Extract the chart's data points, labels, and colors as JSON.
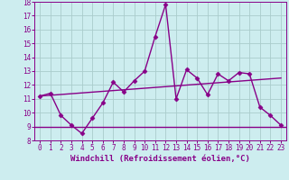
{
  "xlabel": "Windchill (Refroidissement éolien,°C)",
  "ylabel": "",
  "background_color": "#cdedef",
  "line_color": "#880088",
  "grid_color": "#aacccc",
  "xlim": [
    -0.5,
    23.5
  ],
  "ylim": [
    8,
    18
  ],
  "xticks": [
    0,
    1,
    2,
    3,
    4,
    5,
    6,
    7,
    8,
    9,
    10,
    11,
    12,
    13,
    14,
    15,
    16,
    17,
    18,
    19,
    20,
    21,
    22,
    23
  ],
  "yticks": [
    8,
    9,
    10,
    11,
    12,
    13,
    14,
    15,
    16,
    17,
    18
  ],
  "data_line": {
    "x": [
      0,
      1,
      2,
      3,
      4,
      5,
      6,
      7,
      8,
      9,
      10,
      11,
      12,
      13,
      14,
      15,
      16,
      17,
      18,
      19,
      20,
      21,
      22,
      23
    ],
    "y": [
      11.2,
      11.4,
      9.8,
      9.1,
      8.5,
      9.6,
      10.7,
      12.2,
      11.5,
      12.3,
      13.0,
      15.5,
      17.8,
      11.0,
      13.1,
      12.5,
      11.3,
      12.8,
      12.3,
      12.9,
      12.8,
      10.4,
      9.8,
      9.1
    ]
  },
  "trend_line": {
    "x": [
      0,
      23
    ],
    "y": [
      11.2,
      12.5
    ]
  },
  "hline_y": 9.0,
  "marker": "D",
  "marker_size": 2.5,
  "line_width": 1.0,
  "tick_fontsize": 5.5,
  "label_fontsize": 6.5
}
